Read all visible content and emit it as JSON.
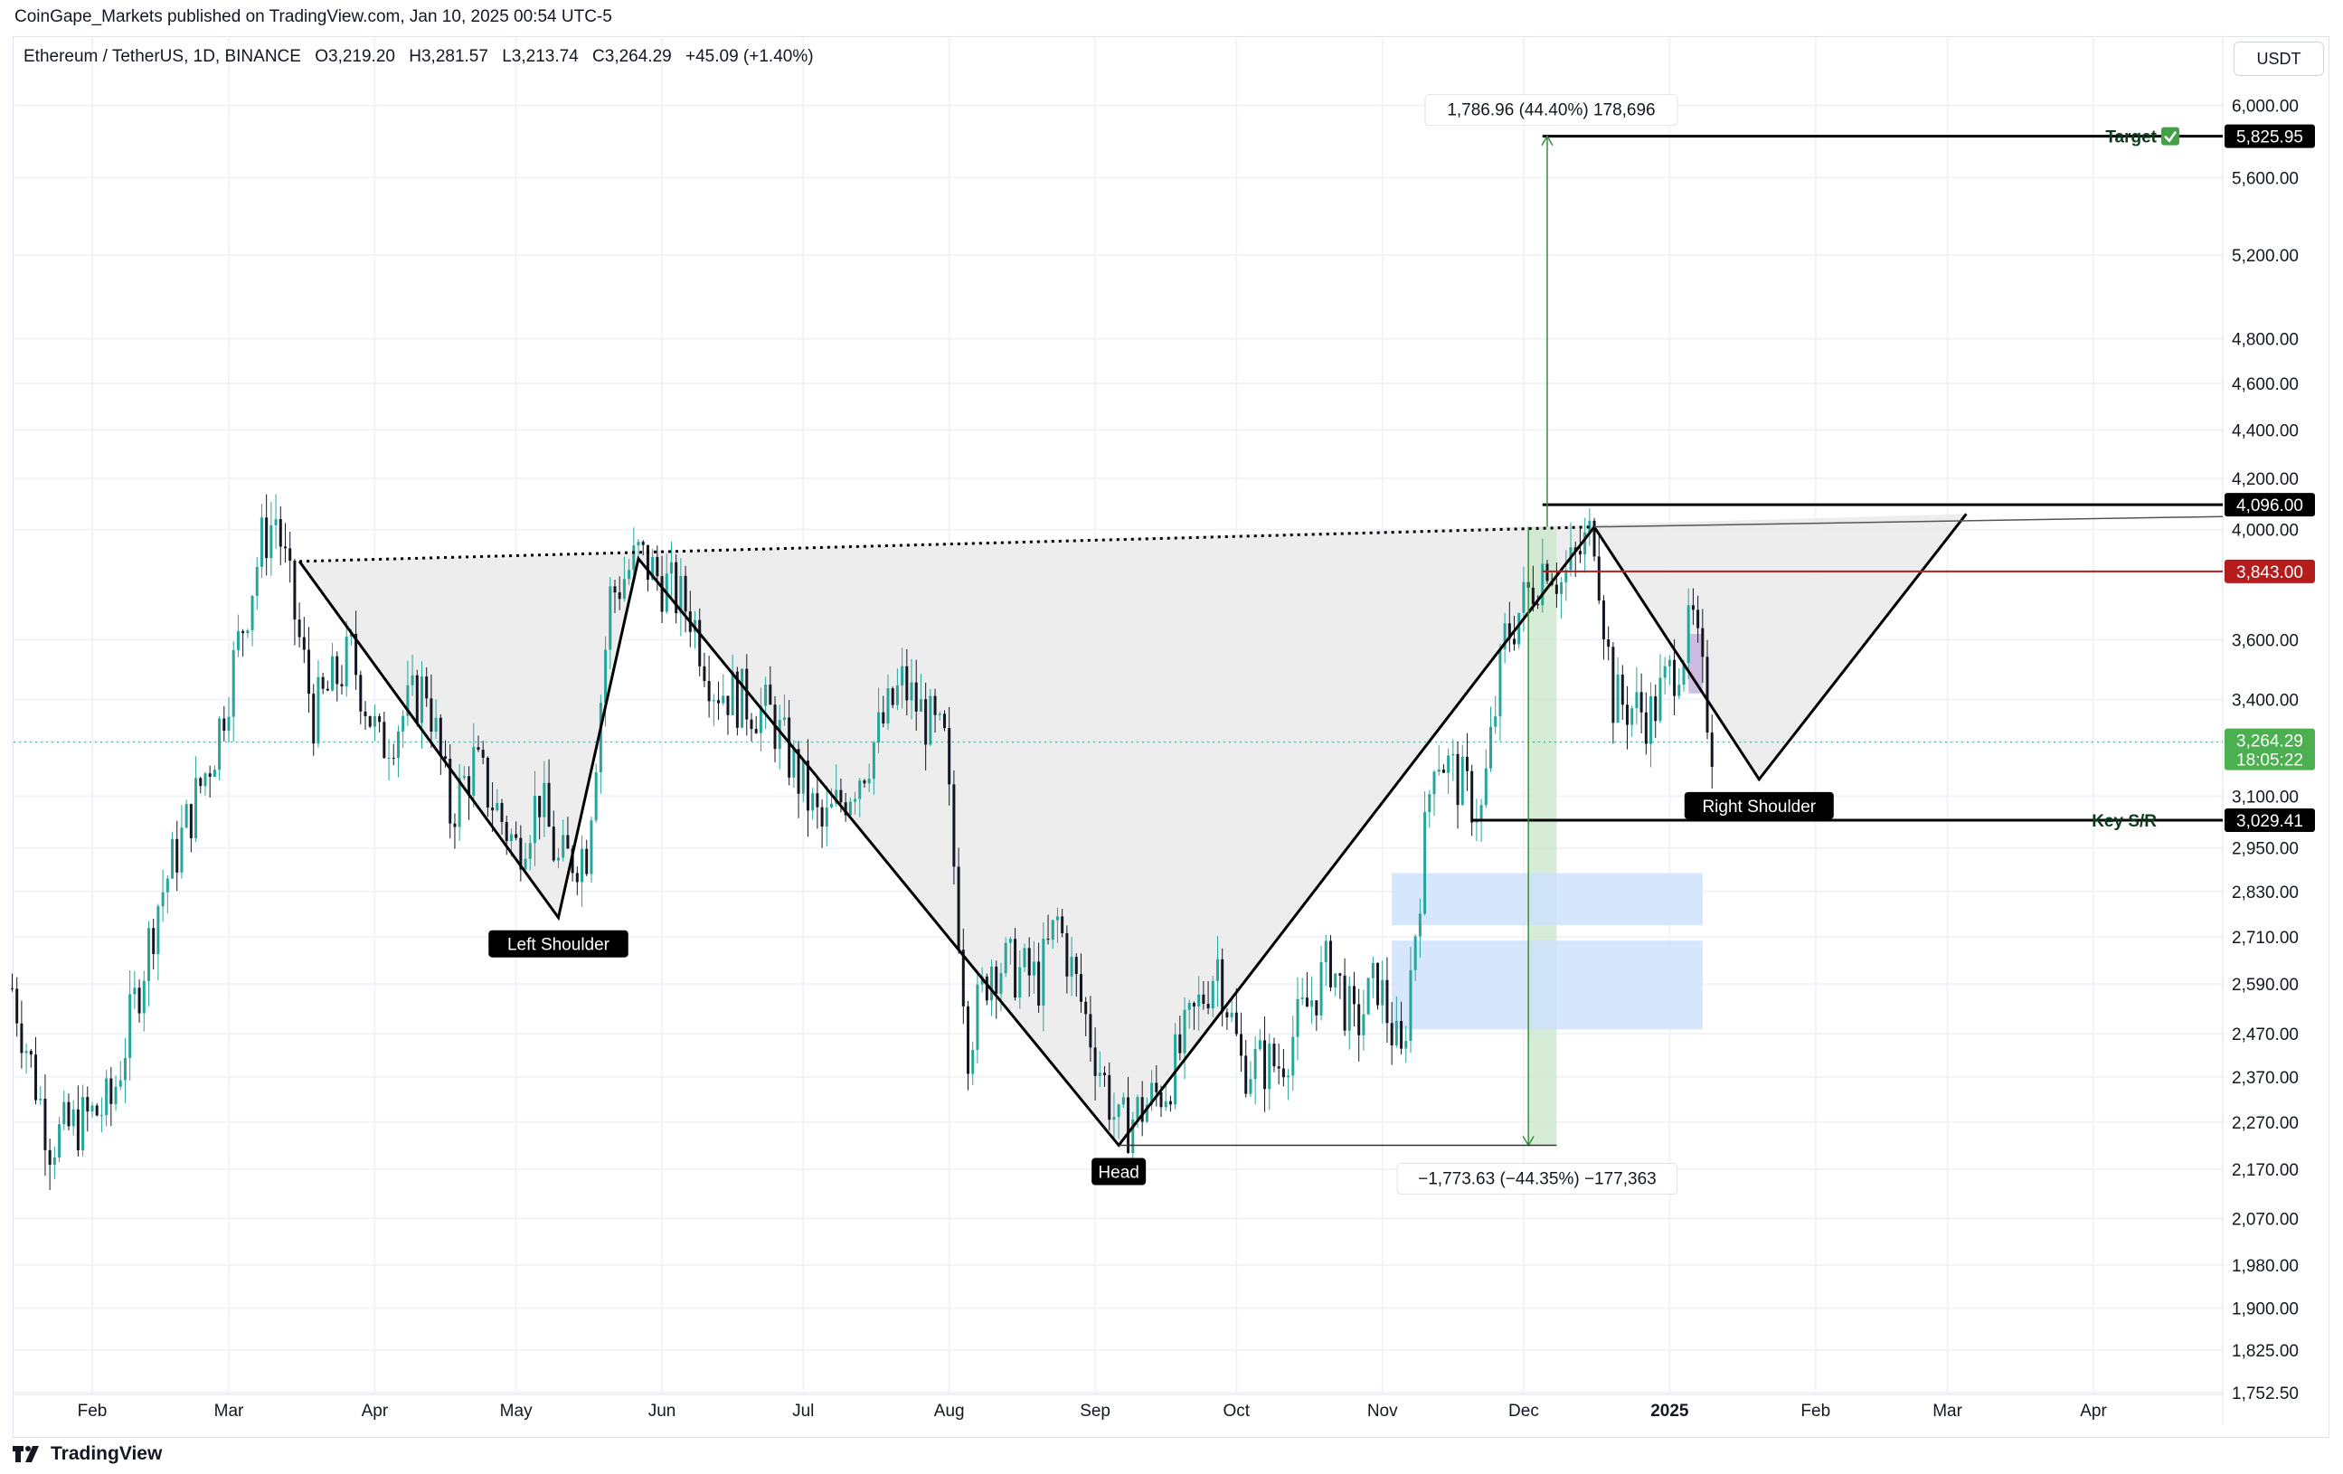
{
  "header": {
    "published": "CoinGape_Markets published on TradingView.com, Jan 10, 2025 00:54 UTC-5"
  },
  "symbol": {
    "name": "Ethereum / TetherUS, 1D, BINANCE",
    "open": "O3,219.20",
    "high": "H3,281.57",
    "low": "L3,213.74",
    "close": "C3,264.29",
    "change": "+45.09 (+1.40%)"
  },
  "currency_button": "USDT",
  "footer": {
    "brand": "TradingView"
  },
  "colors": {
    "up": "#26a69a",
    "down": "#131722",
    "pattern_fill": "#ebebeb",
    "green_zone": "#c8e6c9",
    "blue_zone": "#cfe2fb",
    "purple_box": "#c5b3dc",
    "red_level": "#b71c1c",
    "price_tag": "#4caf50",
    "label_bg": "#000000"
  },
  "chart_data": {
    "type": "candlestick",
    "title": "Ethereum / TetherUS, 1D, BINANCE",
    "y_scale": "log",
    "ylim": [
      1752.5,
      6400
    ],
    "x_ticks": [
      "Feb",
      "Mar",
      "Apr",
      "May",
      "Jun",
      "Jul",
      "Aug",
      "Sep",
      "Oct",
      "Nov",
      "Dec",
      "2025",
      "Feb",
      "Mar",
      "Apr"
    ],
    "y_ticks": [
      "6,000.00",
      "5,600.00",
      "5,200.00",
      "4,800.00",
      "4,600.00",
      "4,400.00",
      "4,200.00",
      "4,000.00",
      "3,600.00",
      "3,400.00",
      "3,100.00",
      "2,950.00",
      "2,830.00",
      "2,710.00",
      "2,590.00",
      "2,470.00",
      "2,370.00",
      "2,270.00",
      "2,170.00",
      "2,070.00",
      "1,980.00",
      "1,900.00",
      "1,825.00",
      "1,752.50"
    ],
    "pattern": {
      "name_labels": {
        "left_shoulder": "Left Shoulder",
        "head": "Head",
        "right_shoulder": "Right Shoulder"
      },
      "points": [
        {
          "date": "2024-03-16",
          "price": 3880
        },
        {
          "date": "2024-05-10",
          "price": 2760
        },
        {
          "date": "2024-05-27",
          "price": 3890
        },
        {
          "date": "2024-09-06",
          "price": 2220
        },
        {
          "date": "2024-12-16",
          "price": 4010
        },
        {
          "date": "2025-01-20",
          "price": 3150
        },
        {
          "date": "2025-03-05",
          "price": 4060
        }
      ],
      "neckline": [
        {
          "date": "2024-03-16",
          "price": 3880
        },
        {
          "date": "2024-12-16",
          "price": 4010
        }
      ]
    },
    "levels": [
      {
        "label": "Target",
        "price": 5825.95,
        "price_label": "5,825.95",
        "start": "2024-12-05",
        "tag": "dark"
      },
      {
        "label": "",
        "price": 4096.0,
        "price_label": "4,096.00",
        "start": "2024-12-05",
        "tag": "dark"
      },
      {
        "label": "",
        "price": 3843.0,
        "price_label": "3,843.00",
        "start": "2024-12-05",
        "tag": "red"
      },
      {
        "label": "Key S/R",
        "price": 3029.41,
        "price_label": "3,029.41",
        "start": "2024-11-20",
        "tag": "dark"
      }
    ],
    "last_price": {
      "price": 3264.29,
      "price_label": "3,264.29",
      "countdown": "18:05:22"
    },
    "measurements": [
      {
        "text": "1,786.96 (44.40%) 178,696",
        "from_price": 4010,
        "to_price": 5825.95,
        "date": "2024-12-06"
      },
      {
        "text": "−1,773.63 (−44.35%) −177,363",
        "from_price": 4010,
        "to_price": 2220,
        "date": "2024-12-02"
      }
    ],
    "zones": [
      {
        "from_date": "2024-12-02",
        "to_date": "2024-12-08",
        "low": 2220,
        "high": 4010
      },
      {
        "from_date": "2024-11-03",
        "to_date": "2025-01-08",
        "low": 2740,
        "high": 2880
      },
      {
        "from_date": "2024-11-03",
        "to_date": "2025-01-08",
        "low": 2480,
        "high": 2700
      },
      {
        "from_date": "2025-01-05",
        "to_date": "2025-01-08",
        "low": 3420,
        "high": 3620
      }
    ],
    "ohlc_waypoints": [
      [
        "2024-01-15",
        2580
      ],
      [
        "2024-01-23",
        2230
      ],
      [
        "2024-02-05",
        2310
      ],
      [
        "2024-02-15",
        2800
      ],
      [
        "2024-02-27",
        3250
      ],
      [
        "2024-03-08",
        3950
      ],
      [
        "2024-03-11",
        4050
      ],
      [
        "2024-03-19",
        3350
      ],
      [
        "2024-03-27",
        3550
      ],
      [
        "2024-04-02",
        3250
      ],
      [
        "2024-04-12",
        3450
      ],
      [
        "2024-04-17",
        3050
      ],
      [
        "2024-04-22",
        3200
      ],
      [
        "2024-05-01",
        2950
      ],
      [
        "2024-05-06",
        3100
      ],
      [
        "2024-05-10",
        2900
      ],
      [
        "2024-05-16",
        2950
      ],
      [
        "2024-05-21",
        3750
      ],
      [
        "2024-05-27",
        3900
      ],
      [
        "2024-06-07",
        3700
      ],
      [
        "2024-06-12",
        3450
      ],
      [
        "2024-06-24",
        3350
      ],
      [
        "2024-07-05",
        3000
      ],
      [
        "2024-07-14",
        3200
      ],
      [
        "2024-07-22",
        3450
      ],
      [
        "2024-07-31",
        3250
      ],
      [
        "2024-08-05",
        2450
      ],
      [
        "2024-08-10",
        2650
      ],
      [
        "2024-08-20",
        2600
      ],
      [
        "2024-08-24",
        2750
      ],
      [
        "2024-09-06",
        2250
      ],
      [
        "2024-09-16",
        2350
      ],
      [
        "2024-09-27",
        2650
      ],
      [
        "2024-10-02",
        2400
      ],
      [
        "2024-10-10",
        2400
      ],
      [
        "2024-10-21",
        2650
      ],
      [
        "2024-10-26",
        2480
      ],
      [
        "2024-10-31",
        2600
      ],
      [
        "2024-11-05",
        2400
      ],
      [
        "2024-11-12",
        3250
      ],
      [
        "2024-11-22",
        3050
      ],
      [
        "2024-11-27",
        3600
      ],
      [
        "2024-12-06",
        3900
      ],
      [
        "2024-12-09",
        3800
      ],
      [
        "2024-12-16",
        4000
      ],
      [
        "2024-12-20",
        3400
      ],
      [
        "2024-12-28",
        3350
      ],
      [
        "2025-01-06",
        3650
      ],
      [
        "2025-01-10",
        3264.29
      ]
    ]
  }
}
